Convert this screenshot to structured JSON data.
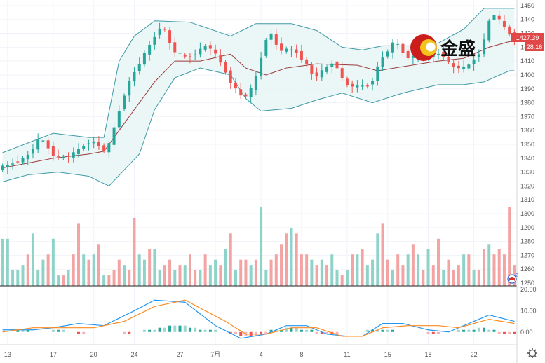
{
  "logo": {
    "text": "金盛"
  },
  "chart_data": [
    {
      "type": "candlestick",
      "x_ticks": [
        "13",
        "17",
        "20",
        "24",
        "27",
        "7月",
        "4",
        "8",
        "11",
        "15",
        "18",
        "22"
      ],
      "y_ticks": [
        1250,
        1260,
        1270,
        1280,
        1290,
        1300,
        1310,
        1320,
        1330,
        1340,
        1350,
        1360,
        1370,
        1380,
        1390,
        1400,
        1410,
        1420,
        1430,
        1440,
        1450
      ],
      "ylim": [
        1248,
        1453
      ],
      "last_price_label": "1427.39",
      "countdown_label": "28:16",
      "indicators": [
        "Bollinger Bands",
        "moving average"
      ],
      "price_path": [
        [
          0,
          1333
        ],
        [
          5,
          1340
        ],
        [
          8,
          1355
        ],
        [
          11,
          1340
        ],
        [
          14,
          1342
        ],
        [
          18,
          1353
        ],
        [
          21,
          1344
        ],
        [
          25,
          1392
        ],
        [
          28,
          1412
        ],
        [
          32,
          1437
        ],
        [
          34,
          1418
        ],
        [
          37,
          1412
        ],
        [
          41,
          1422
        ],
        [
          43,
          1412
        ],
        [
          46,
          1392
        ],
        [
          48,
          1383
        ],
        [
          50,
          1392
        ],
        [
          53,
          1433
        ],
        [
          55,
          1418
        ],
        [
          58,
          1418
        ],
        [
          60,
          1410
        ],
        [
          62,
          1398
        ],
        [
          66,
          1410
        ],
        [
          68,
          1393
        ],
        [
          70,
          1392
        ],
        [
          73,
          1392
        ],
        [
          75,
          1410
        ],
        [
          78,
          1425
        ],
        [
          80,
          1413
        ],
        [
          84,
          1413
        ],
        [
          87,
          1416
        ],
        [
          89,
          1406
        ],
        [
          92,
          1405
        ],
        [
          95,
          1418
        ],
        [
          97,
          1446
        ],
        [
          99,
          1437
        ],
        [
          101,
          1427
        ]
      ],
      "bands_upper": [
        [
          0,
          1344
        ],
        [
          10,
          1358
        ],
        [
          17,
          1355
        ],
        [
          20,
          1355
        ],
        [
          23,
          1410
        ],
        [
          26,
          1428
        ],
        [
          30,
          1439
        ],
        [
          37,
          1438
        ],
        [
          45,
          1428
        ],
        [
          50,
          1437
        ],
        [
          57,
          1437
        ],
        [
          62,
          1432
        ],
        [
          67,
          1420
        ],
        [
          71,
          1418
        ],
        [
          75,
          1421
        ],
        [
          81,
          1421
        ],
        [
          86,
          1423
        ],
        [
          91,
          1433
        ],
        [
          95,
          1448
        ],
        [
          100,
          1448
        ]
      ],
      "bands_lower": [
        [
          0,
          1323
        ],
        [
          5,
          1328
        ],
        [
          11,
          1330
        ],
        [
          17,
          1327
        ],
        [
          21,
          1320
        ],
        [
          27,
          1343
        ],
        [
          30,
          1375
        ],
        [
          34,
          1398
        ],
        [
          39,
          1405
        ],
        [
          45,
          1400
        ],
        [
          48,
          1383
        ],
        [
          51,
          1374
        ],
        [
          57,
          1376
        ],
        [
          62,
          1382
        ],
        [
          67,
          1387
        ],
        [
          73,
          1380
        ],
        [
          79,
          1387
        ],
        [
          86,
          1393
        ],
        [
          91,
          1393
        ],
        [
          95,
          1395
        ],
        [
          100,
          1403
        ]
      ],
      "middle_band": [
        [
          0,
          1333
        ],
        [
          10,
          1340
        ],
        [
          17,
          1343
        ],
        [
          20,
          1345
        ],
        [
          25,
          1370
        ],
        [
          30,
          1395
        ],
        [
          34,
          1410
        ],
        [
          39,
          1410
        ],
        [
          45,
          1415
        ],
        [
          48,
          1405
        ],
        [
          52,
          1400
        ],
        [
          56,
          1405
        ],
        [
          62,
          1408
        ],
        [
          70,
          1407
        ],
        [
          74,
          1403
        ],
        [
          79,
          1406
        ],
        [
          86,
          1410
        ],
        [
          91,
          1412
        ],
        [
          96,
          1420
        ],
        [
          100,
          1424
        ]
      ]
    },
    {
      "type": "bar",
      "name": "volume",
      "count": 102,
      "values": [
        9,
        9,
        3,
        3,
        4,
        6,
        10,
        3,
        5,
        6,
        9,
        2,
        2,
        3,
        6,
        12,
        6,
        5,
        6,
        8,
        2,
        2,
        3,
        5,
        4,
        3,
        13,
        6,
        5,
        7,
        7,
        3,
        4,
        5,
        3,
        4,
        4,
        6,
        3,
        3,
        6,
        4,
        5,
        4,
        7,
        10,
        3,
        5,
        5,
        4,
        5,
        15,
        3,
        5,
        6,
        8,
        10,
        11,
        10,
        6,
        6,
        5,
        4,
        5,
        4,
        6,
        3,
        2,
        3,
        6,
        6,
        7,
        4,
        5,
        10,
        12,
        5,
        3,
        6,
        4,
        6,
        8,
        6,
        3,
        7,
        4,
        9,
        3,
        5,
        3,
        4,
        6,
        6,
        3,
        3,
        7,
        8,
        6,
        7,
        6,
        15,
        4
      ],
      "up_flags": [
        1,
        1,
        1,
        1,
        1,
        0,
        1,
        1,
        1,
        0,
        1,
        1,
        0,
        1,
        0,
        0,
        1,
        0,
        1,
        0,
        1,
        0,
        0,
        0,
        1,
        0,
        0,
        1,
        1,
        0,
        1,
        1,
        0,
        0,
        1,
        0,
        1,
        0,
        0,
        1,
        0,
        1,
        1,
        0,
        1,
        0,
        1,
        0,
        0,
        1,
        0,
        1,
        1,
        0,
        0,
        0,
        0,
        1,
        0,
        0,
        0,
        1,
        0,
        1,
        0,
        1,
        1,
        0,
        1,
        0,
        1,
        0,
        1,
        1,
        1,
        0,
        0,
        1,
        0,
        0,
        1,
        0,
        1,
        0,
        1,
        0,
        0,
        1,
        0,
        0,
        0,
        1,
        0,
        1,
        0,
        0,
        1,
        0,
        0,
        0,
        0,
        0
      ]
    },
    {
      "type": "line",
      "name": "MACD",
      "y_ticks": [
        20.0,
        10.0,
        0.0
      ],
      "ylim": [
        -6,
        21
      ],
      "macd": [
        [
          0,
          1
        ],
        [
          6,
          1
        ],
        [
          10,
          2
        ],
        [
          15,
          4
        ],
        [
          20,
          3
        ],
        [
          26,
          10
        ],
        [
          30,
          15
        ],
        [
          36,
          14
        ],
        [
          42,
          3
        ],
        [
          47,
          -3
        ],
        [
          52,
          -1
        ],
        [
          56,
          3
        ],
        [
          60,
          3
        ],
        [
          64,
          -1
        ],
        [
          68,
          -2
        ],
        [
          71,
          -2
        ],
        [
          75,
          4
        ],
        [
          79,
          4
        ],
        [
          84,
          1
        ],
        [
          88,
          0
        ],
        [
          91,
          3
        ],
        [
          96,
          8
        ],
        [
          101,
          5
        ]
      ],
      "signal": [
        [
          0,
          0
        ],
        [
          6,
          2
        ],
        [
          12,
          2
        ],
        [
          18,
          2
        ],
        [
          24,
          5
        ],
        [
          30,
          12
        ],
        [
          36,
          15
        ],
        [
          44,
          5
        ],
        [
          48,
          -1
        ],
        [
          52,
          -1
        ],
        [
          57,
          2
        ],
        [
          62,
          2
        ],
        [
          67,
          -2
        ],
        [
          71,
          -2
        ],
        [
          75,
          2
        ],
        [
          80,
          3
        ],
        [
          86,
          3
        ],
        [
          90,
          2
        ],
        [
          96,
          6
        ],
        [
          101,
          4
        ]
      ],
      "histogram": [
        0,
        0,
        0,
        1,
        1,
        1,
        0,
        0,
        0,
        0,
        1,
        1,
        1,
        0,
        0,
        -1,
        -1,
        0,
        0,
        0,
        0,
        0,
        0,
        0,
        -1,
        -1,
        0,
        0,
        1,
        1,
        1,
        2,
        2,
        3,
        3,
        3,
        3,
        2,
        2,
        1,
        1,
        1,
        1,
        0,
        0,
        -1,
        -1,
        -2,
        -2,
        -2,
        -2,
        -1,
        -1,
        1,
        1,
        1,
        2,
        2,
        2,
        1,
        1,
        1,
        -1,
        -1,
        -1,
        -1,
        -1,
        0,
        0,
        0,
        0,
        0,
        1,
        1,
        1,
        1,
        1,
        1,
        0,
        0,
        0,
        0,
        0,
        0,
        -1,
        -1,
        -1,
        0,
        0,
        0,
        1,
        1,
        1,
        1,
        2,
        2,
        1,
        1,
        -1,
        -1,
        -1,
        -1
      ]
    }
  ]
}
